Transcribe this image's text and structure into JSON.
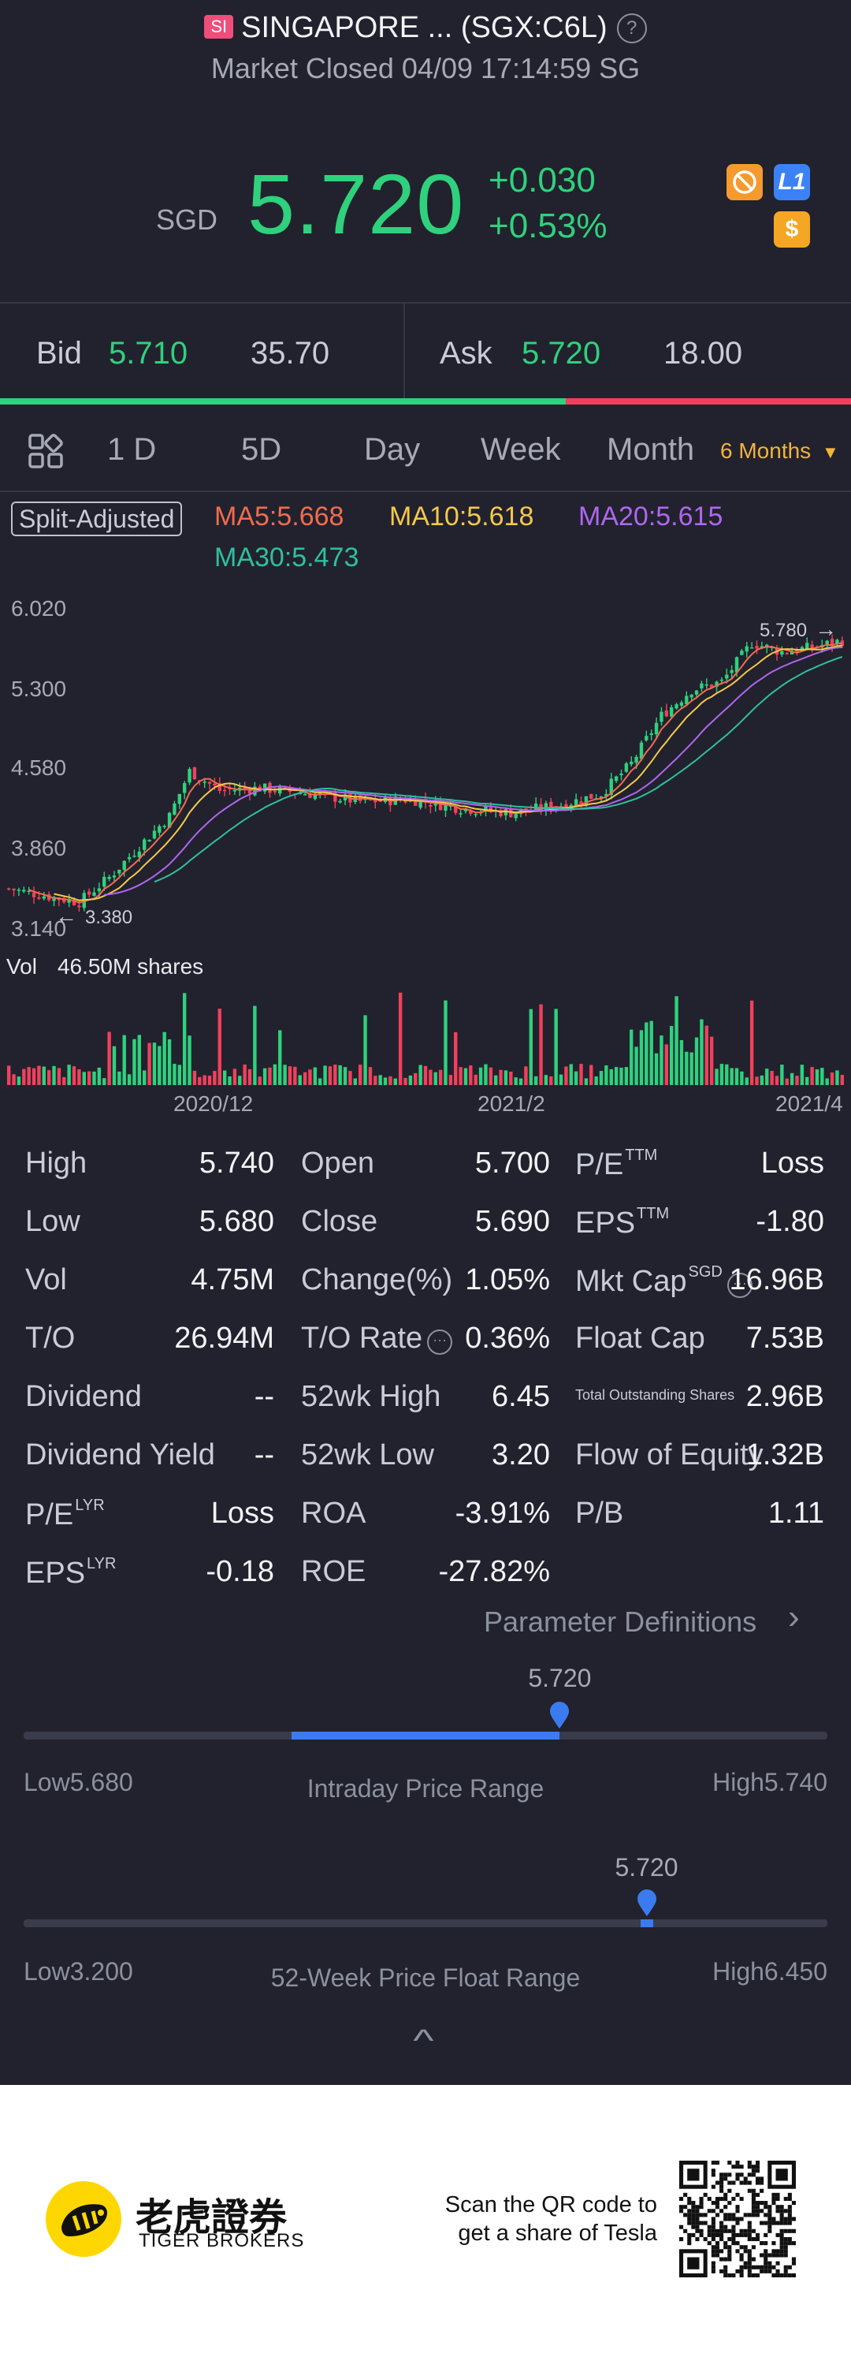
{
  "header": {
    "badge": "SI",
    "title": "SINGAPORE ... (SGX:C6L)",
    "status": "Market Closed 04/09 17:14:59 SG",
    "currency": "SGD",
    "price": "5.720",
    "change": "+0.030",
    "change_pct": "+0.53%",
    "icons": [
      {
        "name": "no-trade-icon",
        "color": "#f59a2d"
      },
      {
        "name": "level1-icon",
        "label": "L1",
        "color": "#3b82f6"
      },
      {
        "name": "dollar-icon",
        "label": "$",
        "color": "#f5a623"
      }
    ]
  },
  "bidask": {
    "bid_label": "Bid",
    "bid_price": "5.710",
    "bid_size": "35.70",
    "ask_label": "Ask",
    "ask_price": "5.720",
    "ask_size": "18.00",
    "bid_ratio": 0.665
  },
  "tabs": [
    {
      "label": "1 D"
    },
    {
      "label": "5D"
    },
    {
      "label": "Day"
    },
    {
      "label": "Week"
    },
    {
      "label": "Month"
    },
    {
      "label": "6 Months",
      "active": true
    }
  ],
  "indicators": {
    "split": "Split-Adjusted",
    "ma5": "MA5:5.668",
    "ma10": "MA10:5.618",
    "ma20": "MA20:5.615",
    "ma30": "MA30:5.473",
    "colors": {
      "ma5": "#f26b4f",
      "ma10": "#f5c84a",
      "ma20": "#b066f0",
      "ma30": "#2fbfa0",
      "up": "#2fd17d",
      "down": "#f2405c"
    }
  },
  "chart_data": {
    "type": "candlestick",
    "y_ticks": [
      "6.020",
      "5.300",
      "4.580",
      "3.860",
      "3.140"
    ],
    "ylim": [
      3.14,
      6.02
    ],
    "x_ticks": [
      "2020/12",
      "2021/2",
      "2021/4"
    ],
    "high_marker": "5.780",
    "low_marker": "3.380",
    "volume_label": "Vol",
    "volume_value": "46.50M shares"
  },
  "stats": {
    "col1": [
      {
        "label": "High",
        "value": "5.740"
      },
      {
        "label": "Low",
        "value": "5.680"
      },
      {
        "label": "Vol",
        "value": "4.75M"
      },
      {
        "label": "T/O",
        "value": "26.94M"
      },
      {
        "label": "Dividend",
        "value": "--"
      },
      {
        "label": "Dividend Yield",
        "value": "--"
      },
      {
        "label": "P/E",
        "sup": "LYR",
        "value": "Loss"
      },
      {
        "label": "EPS",
        "sup": "LYR",
        "value": "-0.18"
      }
    ],
    "col2": [
      {
        "label": "Open",
        "value": "5.700"
      },
      {
        "label": "Close",
        "value": "5.690"
      },
      {
        "label": "Change(%)",
        "value": "1.05%"
      },
      {
        "label": "T/O Rate",
        "value": "0.36%"
      },
      {
        "label": "52wk High",
        "value": "6.45"
      },
      {
        "label": "52wk Low",
        "value": "3.20"
      },
      {
        "label": "ROA",
        "value": "-3.91%"
      },
      {
        "label": "ROE",
        "value": "-27.82%"
      }
    ],
    "col3": [
      {
        "label": "P/E",
        "sup": "TTM",
        "value": "Loss"
      },
      {
        "label": "EPS",
        "sup": "TTM",
        "value": "-1.80"
      },
      {
        "label": "Mkt Cap",
        "sup": "SGD",
        "value": "16.96B"
      },
      {
        "label": "Float Cap",
        "value": "7.53B"
      },
      {
        "label": "Total Outstanding Shares",
        "value": "2.96B"
      },
      {
        "label": "Flow of Equity",
        "value": "1.32B"
      },
      {
        "label": "P/B",
        "value": "1.11"
      }
    ]
  },
  "param_defs": "Parameter Definitions",
  "intraday": {
    "current": "5.720",
    "low": "Low5.680",
    "title": "Intraday Price Range",
    "high": "High5.740",
    "position": 0.667
  },
  "week52": {
    "current": "5.720",
    "low": "Low3.200",
    "title": "52-Week Price Float Range",
    "high": "High6.450",
    "position": 0.775
  },
  "footer": {
    "brand_cn": "老虎證券",
    "brand_en": "TIGER BROKERS",
    "scan_line1": "Scan the QR code to",
    "scan_line2": "get a share of Tesla"
  }
}
